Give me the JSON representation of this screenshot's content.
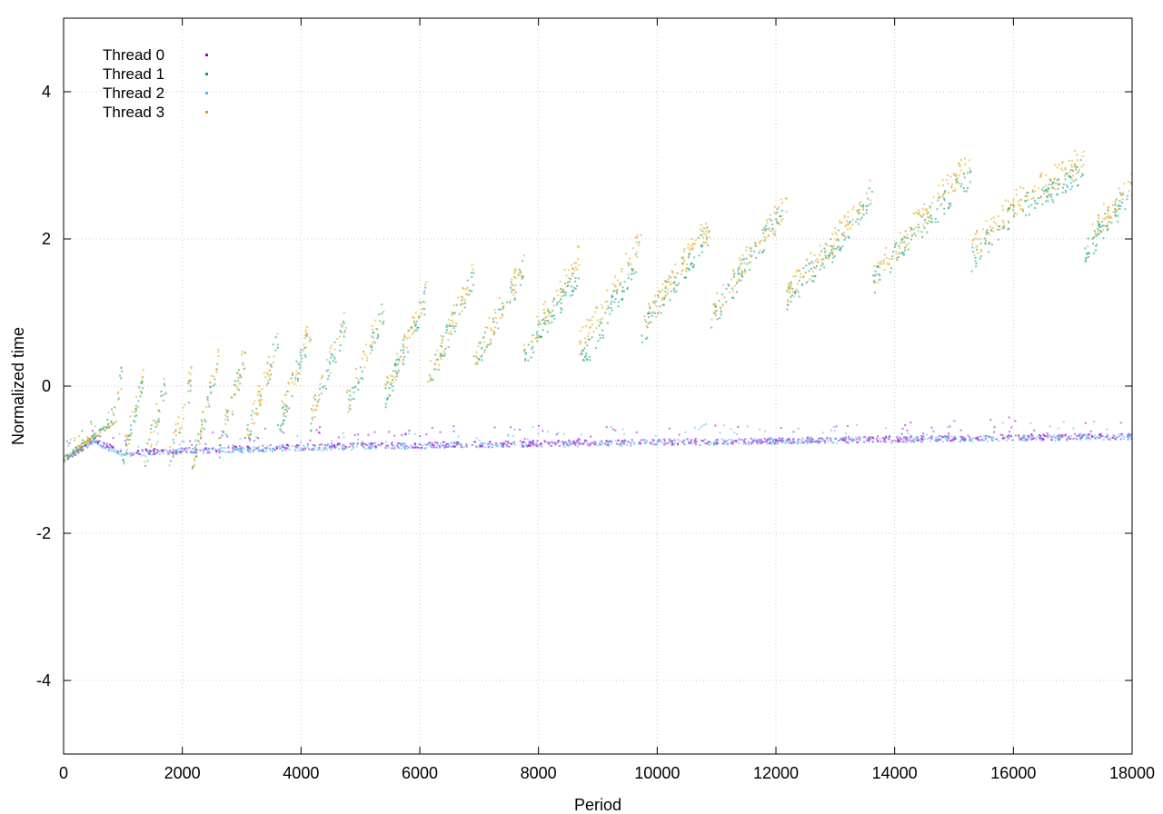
{
  "chart_data": {
    "type": "scatter",
    "title": "",
    "xlabel": "Period",
    "ylabel": "Normalized time",
    "xlim": [
      0,
      18000
    ],
    "ylim": [
      -5,
      5
    ],
    "x_ticks": [
      0,
      2000,
      4000,
      6000,
      8000,
      10000,
      12000,
      14000,
      16000,
      18000
    ],
    "y_ticks": [
      -4,
      -2,
      0,
      2,
      4
    ],
    "grid": true,
    "legend_position": "top-left",
    "series": [
      {
        "name": "Thread 0",
        "color": "#9400d3",
        "pattern": "flat-band",
        "points": [
          [
            0,
            -1.0
          ],
          [
            500,
            -0.75
          ],
          [
            1000,
            -0.9
          ],
          [
            2000,
            -0.88
          ],
          [
            4000,
            -0.83
          ],
          [
            6000,
            -0.8
          ],
          [
            8000,
            -0.78
          ],
          [
            10000,
            -0.76
          ],
          [
            12000,
            -0.74
          ],
          [
            14000,
            -0.72
          ],
          [
            16000,
            -0.7
          ],
          [
            18000,
            -0.68
          ]
        ]
      },
      {
        "name": "Thread 1",
        "color": "#009e73",
        "pattern": "sawtooth",
        "points": [
          [
            0,
            -1.0
          ],
          [
            900,
            -0.45
          ],
          [
            2000,
            -0.55
          ],
          [
            3000,
            -0.15
          ],
          [
            4000,
            0.1
          ],
          [
            5000,
            0.35
          ],
          [
            6000,
            0.6
          ],
          [
            7000,
            0.9
          ],
          [
            8000,
            1.0
          ],
          [
            9000,
            0.9
          ],
          [
            10000,
            1.4
          ],
          [
            11000,
            1.5
          ],
          [
            12000,
            1.8
          ],
          [
            13000,
            1.8
          ],
          [
            14000,
            2.1
          ],
          [
            15000,
            2.2
          ],
          [
            16000,
            2.5
          ],
          [
            17000,
            2.3
          ],
          [
            18000,
            2.8
          ]
        ]
      },
      {
        "name": "Thread 2",
        "color": "#56b4e9",
        "pattern": "flat-band",
        "points": [
          [
            0,
            -1.0
          ],
          [
            500,
            -0.75
          ],
          [
            1000,
            -0.93
          ],
          [
            2000,
            -0.89
          ],
          [
            4000,
            -0.84
          ],
          [
            6000,
            -0.81
          ],
          [
            8000,
            -0.79
          ],
          [
            10000,
            -0.77
          ],
          [
            12000,
            -0.75
          ],
          [
            14000,
            -0.73
          ],
          [
            16000,
            -0.71
          ],
          [
            18000,
            -0.69
          ]
        ]
      },
      {
        "name": "Thread 3",
        "color": "#e69f00",
        "pattern": "sawtooth",
        "points": [
          [
            0,
            -1.0
          ],
          [
            900,
            -0.45
          ],
          [
            2000,
            -0.5
          ],
          [
            3000,
            -0.1
          ],
          [
            4000,
            0.15
          ],
          [
            5000,
            0.4
          ],
          [
            6000,
            0.65
          ],
          [
            7000,
            0.95
          ],
          [
            8000,
            1.1
          ],
          [
            9000,
            1.2
          ],
          [
            10000,
            1.45
          ],
          [
            11000,
            1.6
          ],
          [
            12000,
            1.85
          ],
          [
            13000,
            1.9
          ],
          [
            14000,
            2.2
          ],
          [
            15000,
            2.4
          ],
          [
            16000,
            2.6
          ],
          [
            17000,
            2.5
          ],
          [
            18000,
            2.9
          ]
        ]
      }
    ]
  }
}
